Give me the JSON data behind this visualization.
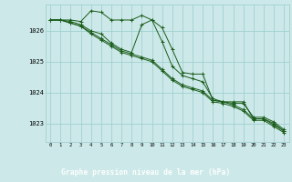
{
  "background_color": "#cce8e8",
  "plot_bg_color": "#cce8e8",
  "grid_color": "#99cccc",
  "line_color": "#1a5c1a",
  "title": "Graphe pression niveau de la mer (hPa)",
  "xlabel_hours": [
    0,
    1,
    2,
    3,
    4,
    5,
    6,
    7,
    8,
    9,
    10,
    11,
    12,
    13,
    14,
    15,
    16,
    17,
    18,
    19,
    20,
    21,
    22,
    23
  ],
  "ylim": [
    1022.4,
    1026.85
  ],
  "yticks": [
    1023,
    1024,
    1025,
    1026
  ],
  "label_bg": "#2d6e2d",
  "label_fg": "#ffffff",
  "series": [
    [
      1026.35,
      1026.35,
      1026.35,
      1026.3,
      1026.65,
      1026.6,
      1026.35,
      1026.35,
      1026.35,
      1026.5,
      1026.35,
      1026.1,
      1025.4,
      1024.65,
      1024.6,
      1024.6,
      1023.75,
      1023.7,
      1023.7,
      1023.7,
      1023.15,
      1023.15,
      1023.0,
      1022.75
    ],
    [
      1026.35,
      1026.35,
      1026.25,
      1026.15,
      1025.95,
      1025.75,
      1025.55,
      1025.35,
      1025.25,
      1025.15,
      1025.05,
      1024.75,
      1024.45,
      1024.25,
      1024.15,
      1024.05,
      1023.75,
      1023.7,
      1023.6,
      1023.45,
      1023.15,
      1023.15,
      1022.95,
      1022.75
    ],
    [
      1026.35,
      1026.35,
      1026.25,
      1026.15,
      1025.9,
      1025.7,
      1025.5,
      1025.3,
      1025.2,
      1025.1,
      1025.0,
      1024.7,
      1024.4,
      1024.2,
      1024.1,
      1024.0,
      1023.7,
      1023.65,
      1023.55,
      1023.4,
      1023.1,
      1023.1,
      1022.9,
      1022.7
    ],
    [
      1026.35,
      1026.35,
      1026.3,
      1026.2,
      1026.0,
      1025.9,
      1025.6,
      1025.4,
      1025.3,
      1026.2,
      1026.35,
      1025.65,
      1024.85,
      1024.55,
      1024.45,
      1024.35,
      1023.8,
      1023.7,
      1023.65,
      1023.65,
      1023.2,
      1023.2,
      1023.05,
      1022.8
    ]
  ]
}
